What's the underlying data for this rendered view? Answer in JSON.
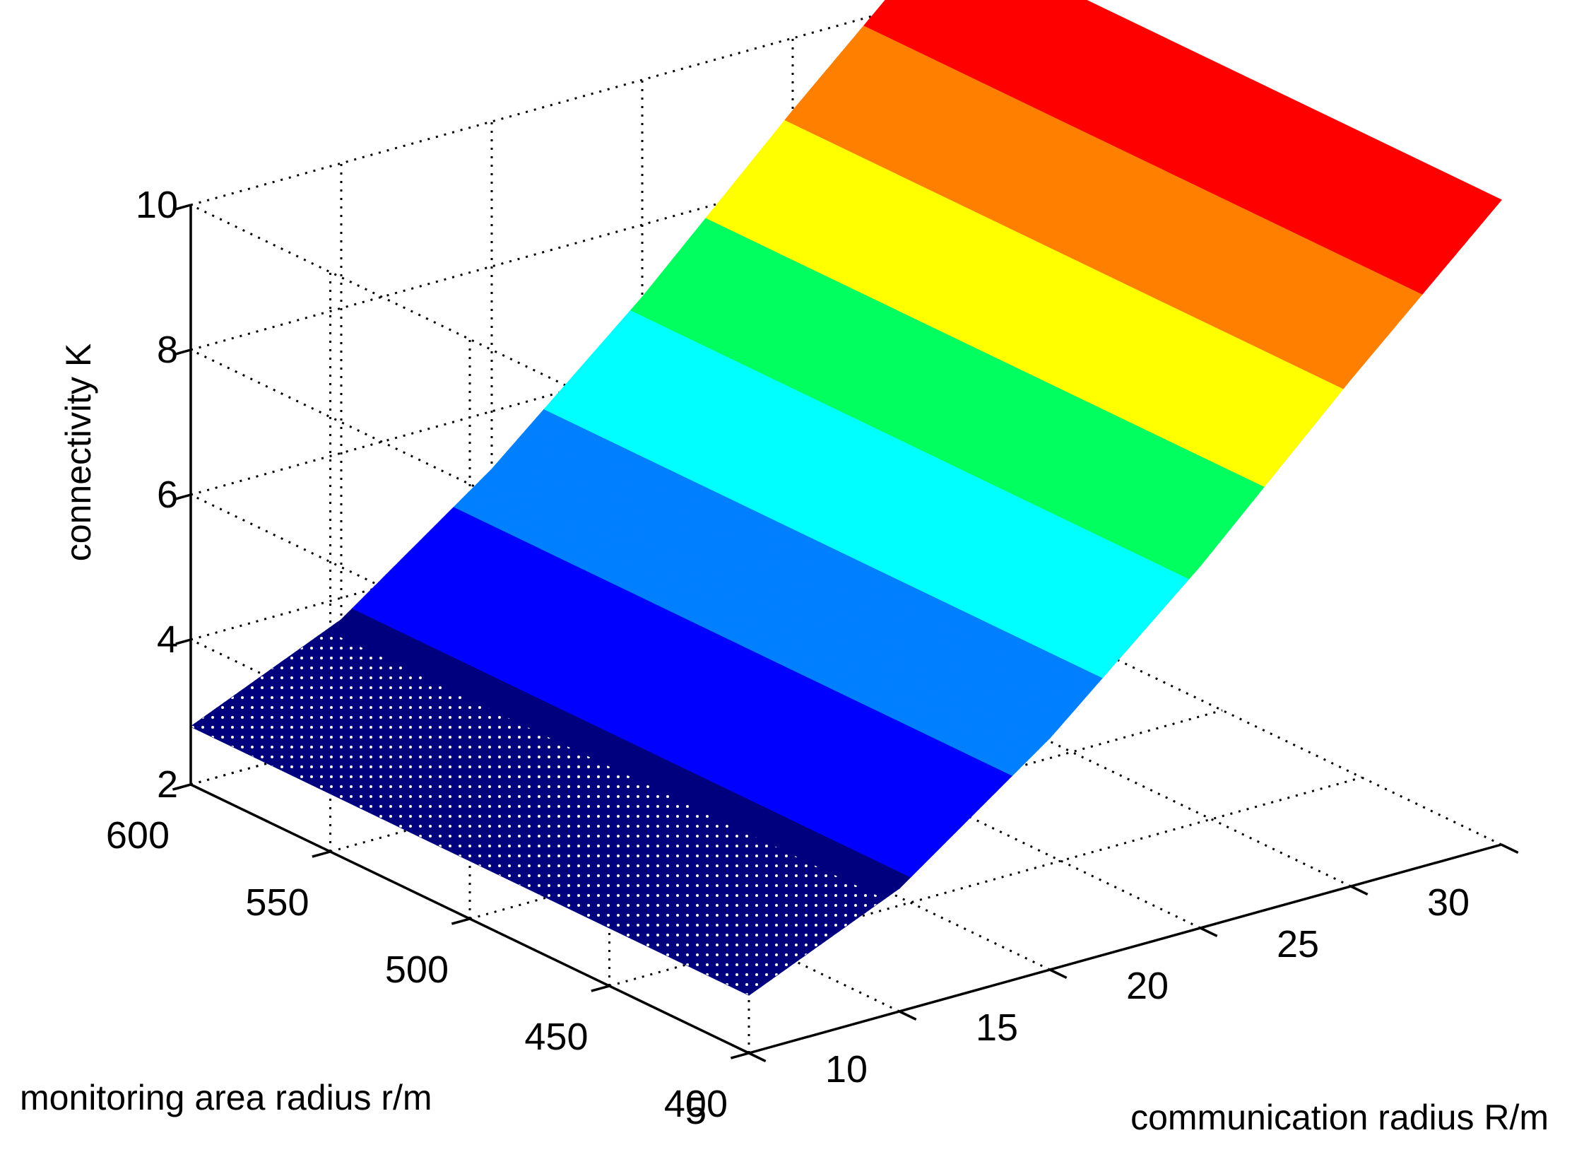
{
  "chart_data": {
    "type": "surface",
    "title": "",
    "xlabel": "communication radius R/m",
    "ylabel": "monitoring area radius r/m",
    "zlabel": "connectivity K",
    "x_ticks": [
      "5",
      "10",
      "15",
      "20",
      "25",
      "30"
    ],
    "y_ticks": [
      "400",
      "450",
      "500",
      "550",
      "600"
    ],
    "z_ticks": [
      "2",
      "4",
      "6",
      "8",
      "10"
    ],
    "xlim": [
      5,
      30
    ],
    "ylim": [
      400,
      600
    ],
    "zlim": [
      2,
      10
    ],
    "grid": true,
    "colormap": "jet",
    "color_bands": [
      "#00007f",
      "#0000ff",
      "#007fff",
      "#00ffff",
      "#00ff5f",
      "#ffff00",
      "#ff7f00",
      "#ff0000"
    ],
    "surface_samples": [
      {
        "R": 5,
        "K": 2.8
      },
      {
        "R": 10,
        "K": 3.7
      },
      {
        "R": 15,
        "K": 5.2
      },
      {
        "R": 20,
        "K": 7.0
      },
      {
        "R": 25,
        "K": 9.0
      },
      {
        "R": 30,
        "K": 10.9
      }
    ],
    "surface_r_range": [
      400,
      600
    ],
    "note_dependence": "K increases with R and is nearly constant across r"
  }
}
